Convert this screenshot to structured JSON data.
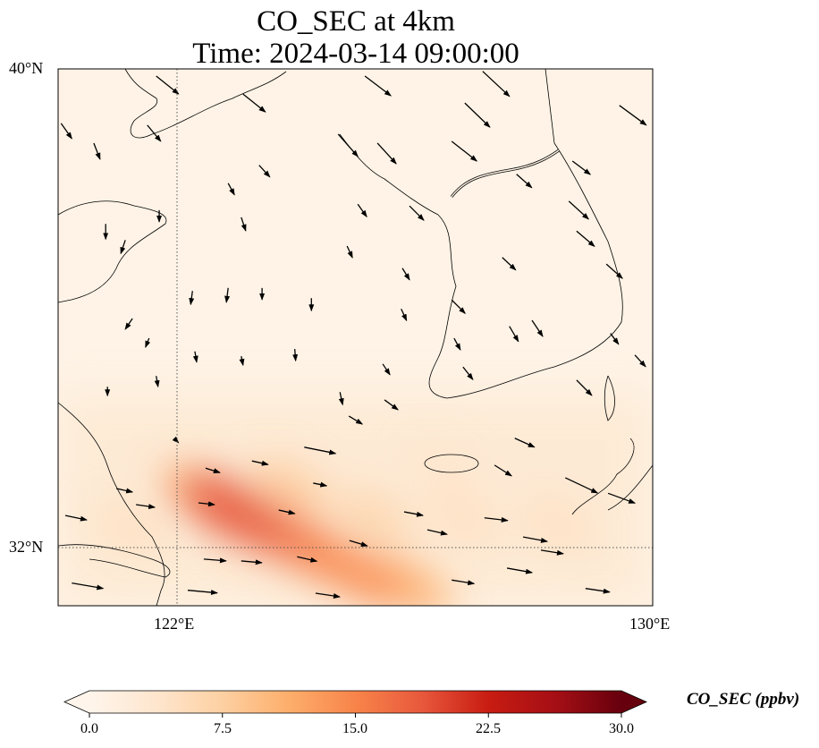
{
  "title": {
    "line1": "CO_SEC at 4km",
    "line2": "Time: 2024-03-14 09:00:00"
  },
  "axes": {
    "lat_ticks": [
      {
        "value": 40,
        "label": "40°N"
      },
      {
        "value": 32,
        "label": "32°N"
      }
    ],
    "lon_ticks": [
      {
        "value": 122,
        "label": "122°E"
      },
      {
        "value": 130,
        "label": "130°E"
      }
    ],
    "gridlines": "dotted"
  },
  "colorbar": {
    "label": "CO_SEC (ppbv)",
    "ticks": [
      "0.0",
      "7.5",
      "15.0",
      "22.5",
      "30.0"
    ],
    "range": [
      0,
      30
    ],
    "extend": "both",
    "colormap": [
      "#fff5eb",
      "#fee6ce",
      "#fdd0a2",
      "#fdae6b",
      "#f8844a",
      "#e8583c",
      "#c81c12",
      "#a50f15",
      "#67000d"
    ]
  },
  "chart_data": {
    "type": "heatmap",
    "title": "CO_SEC at 4km — Time: 2024-03-14 09:00:00",
    "extent": {
      "lon": [
        120,
        130
      ],
      "lat": [
        31.03,
        40
      ]
    },
    "field_blobs": [
      {
        "lon": 122.9,
        "lat": 32.65,
        "value": 19
      },
      {
        "lon": 123.5,
        "lat": 32.35,
        "value": 17
      },
      {
        "lon": 124.3,
        "lat": 31.95,
        "value": 15
      },
      {
        "lon": 125.1,
        "lat": 31.55,
        "value": 14
      },
      {
        "lon": 122.5,
        "lat": 32.85,
        "value": 12
      },
      {
        "lon": 125.9,
        "lat": 31.35,
        "value": 11
      },
      {
        "lon": 123.9,
        "lat": 33.0,
        "value": 8
      },
      {
        "lon": 125.3,
        "lat": 32.5,
        "value": 7
      },
      {
        "lon": 126.8,
        "lat": 32.5,
        "value": 5
      },
      {
        "lon": 128.4,
        "lat": 32.4,
        "value": 5
      },
      {
        "lon": 126.5,
        "lat": 33.3,
        "value": 4
      },
      {
        "lon": 121.2,
        "lat": 32.3,
        "value": 5
      }
    ],
    "wind_vectors": [
      [
        121.65,
        39.88,
        2.5,
        -2.0
      ],
      [
        123.11,
        39.58,
        2.5,
        -2.0
      ],
      [
        125.16,
        39.88,
        2.9,
        -2.2
      ],
      [
        127.14,
        39.96,
        3.0,
        -2.8
      ],
      [
        126.84,
        39.43,
        2.8,
        -2.7
      ],
      [
        129.44,
        39.39,
        3.0,
        -2.2
      ],
      [
        120.05,
        39.09,
        1.2,
        -1.7
      ],
      [
        120.6,
        38.76,
        0.7,
        -1.8
      ],
      [
        121.5,
        39.06,
        1.5,
        -1.8
      ],
      [
        123.38,
        38.39,
        1.2,
        -1.3
      ],
      [
        124.71,
        38.91,
        2.2,
        -2.5
      ],
      [
        125.37,
        38.76,
        2.1,
        -2.3
      ],
      [
        126.62,
        38.79,
        2.8,
        -2.2
      ],
      [
        128.65,
        38.46,
        2.0,
        -1.5
      ],
      [
        127.71,
        38.24,
        1.7,
        -1.5
      ],
      [
        122.86,
        38.09,
        0.7,
        -1.3
      ],
      [
        121.7,
        37.64,
        0,
        -1.3
      ],
      [
        120.8,
        37.41,
        0,
        -1.7
      ],
      [
        121.13,
        37.14,
        -0.5,
        -1.5
      ],
      [
        123.08,
        37.52,
        0.5,
        -1.5
      ],
      [
        125.04,
        37.74,
        1.0,
        -1.4
      ],
      [
        125.91,
        37.71,
        1.6,
        -1.6
      ],
      [
        128.59,
        37.79,
        2.2,
        -2.0
      ],
      [
        128.72,
        37.29,
        2.0,
        -1.7
      ],
      [
        124.86,
        37.04,
        0.6,
        -1.3
      ],
      [
        127.47,
        36.85,
        1.5,
        -1.4
      ],
      [
        129.22,
        36.74,
        1.8,
        -1.6
      ],
      [
        125.79,
        36.67,
        0.8,
        -1.3
      ],
      [
        122.26,
        36.29,
        -0.2,
        -1.5
      ],
      [
        122.86,
        36.34,
        -0.2,
        -1.6
      ],
      [
        123.43,
        36.34,
        0,
        -1.3
      ],
      [
        124.26,
        36.17,
        0,
        -1.4
      ],
      [
        125.77,
        35.99,
        0.6,
        -1.3
      ],
      [
        126.62,
        36.14,
        1.5,
        -1.5
      ],
      [
        121.25,
        35.83,
        -0.8,
        -1.2
      ],
      [
        121.53,
        35.5,
        -0.4,
        -1.0
      ],
      [
        122.3,
        35.28,
        0.2,
        -1.2
      ],
      [
        123.08,
        35.2,
        0.2,
        -1.0
      ],
      [
        123.98,
        35.32,
        0.1,
        -1.3
      ],
      [
        126.66,
        35.5,
        0.7,
        -1.3
      ],
      [
        127.59,
        35.7,
        1.0,
        -1.7
      ],
      [
        127.97,
        35.8,
        1.2,
        -1.8
      ],
      [
        129.29,
        35.58,
        0.9,
        -1.2
      ],
      [
        125.46,
        35.07,
        0.8,
        -1.2
      ],
      [
        126.81,
        35.02,
        1.1,
        -1.4
      ],
      [
        128.72,
        34.8,
        1.7,
        -1.7
      ],
      [
        129.7,
        35.22,
        1.2,
        -1.3
      ],
      [
        120.83,
        34.69,
        0,
        -1.0
      ],
      [
        121.65,
        34.87,
        0.2,
        -1.2
      ],
      [
        124.74,
        34.6,
        0.3,
        -1.4
      ],
      [
        125.49,
        34.47,
        1.5,
        -1.1
      ],
      [
        124.89,
        34.2,
        1.5,
        -0.9
      ],
      [
        127.68,
        33.83,
        2.2,
        -1.0
      ],
      [
        121.95,
        33.83,
        0.5,
        -0.5
      ],
      [
        124.14,
        33.68,
        3.5,
        -0.7
      ],
      [
        122.48,
        33.33,
        1.6,
        -0.5
      ],
      [
        123.26,
        33.45,
        1.8,
        -0.4
      ],
      [
        127.34,
        33.38,
        1.9,
        -1.2
      ],
      [
        128.53,
        33.17,
        3.6,
        -1.7
      ],
      [
        129.25,
        32.91,
        3.0,
        -1.1
      ],
      [
        120.98,
        32.99,
        1.8,
        -0.4
      ],
      [
        121.31,
        32.72,
        2.1,
        -0.3
      ],
      [
        122.36,
        32.75,
        1.8,
        -0.2
      ],
      [
        123.71,
        32.63,
        1.8,
        -0.4
      ],
      [
        124.29,
        33.08,
        1.5,
        -0.3
      ],
      [
        125.82,
        32.6,
        2.1,
        -0.4
      ],
      [
        127.17,
        32.5,
        2.6,
        -0.3
      ],
      [
        120.12,
        32.54,
        2.4,
        -0.5
      ],
      [
        126.21,
        32.3,
        2.2,
        -0.5
      ],
      [
        124.9,
        32.12,
        2.0,
        -0.6
      ],
      [
        127.82,
        32.18,
        2.7,
        -0.5
      ],
      [
        128.12,
        31.96,
        2.5,
        -0.4
      ],
      [
        122.45,
        31.81,
        2.5,
        -0.2
      ],
      [
        123.08,
        31.78,
        2.3,
        -0.2
      ],
      [
        124.02,
        31.85,
        2.2,
        -0.5
      ],
      [
        127.55,
        31.66,
        2.8,
        -0.5
      ],
      [
        120.23,
        31.41,
        3.5,
        -0.6
      ],
      [
        122.18,
        31.29,
        3.3,
        -0.3
      ],
      [
        124.33,
        31.24,
        2.7,
        -0.4
      ],
      [
        126.62,
        31.46,
        2.5,
        -0.4
      ],
      [
        128.87,
        31.32,
        2.7,
        -0.4
      ]
    ]
  }
}
